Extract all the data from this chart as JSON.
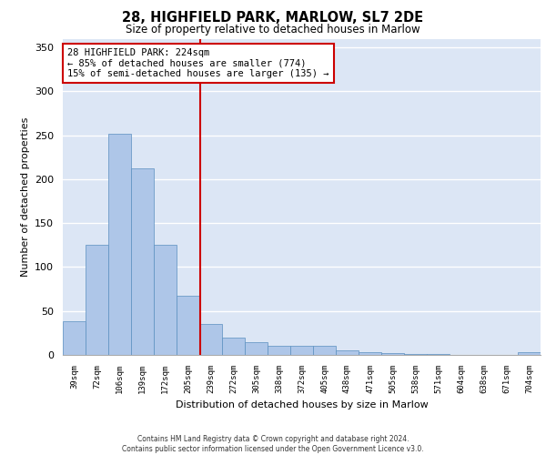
{
  "title_line1": "28, HIGHFIELD PARK, MARLOW, SL7 2DE",
  "title_line2": "Size of property relative to detached houses in Marlow",
  "xlabel": "Distribution of detached houses by size in Marlow",
  "ylabel": "Number of detached properties",
  "categories": [
    "39sqm",
    "72sqm",
    "106sqm",
    "139sqm",
    "172sqm",
    "205sqm",
    "239sqm",
    "272sqm",
    "305sqm",
    "338sqm",
    "372sqm",
    "405sqm",
    "438sqm",
    "471sqm",
    "505sqm",
    "538sqm",
    "571sqm",
    "604sqm",
    "638sqm",
    "671sqm",
    "704sqm"
  ],
  "values": [
    38,
    125,
    252,
    212,
    125,
    67,
    35,
    20,
    15,
    10,
    10,
    10,
    5,
    3,
    2,
    1,
    1,
    0,
    0,
    0,
    3
  ],
  "bar_color": "#aec6e8",
  "bar_edge_color": "#5a8fc0",
  "background_color": "#dce6f5",
  "annotation_line1": "28 HIGHFIELD PARK: 224sqm",
  "annotation_line2": "← 85% of detached houses are smaller (774)",
  "annotation_line3": "15% of semi-detached houses are larger (135) →",
  "vline_color": "#cc0000",
  "annotation_box_color": "#ffffff",
  "annotation_box_edge": "#cc0000",
  "ylim": [
    0,
    360
  ],
  "yticks": [
    0,
    50,
    100,
    150,
    200,
    250,
    300,
    350
  ],
  "footer_line1": "Contains HM Land Registry data © Crown copyright and database right 2024.",
  "footer_line2": "Contains public sector information licensed under the Open Government Licence v3.0."
}
